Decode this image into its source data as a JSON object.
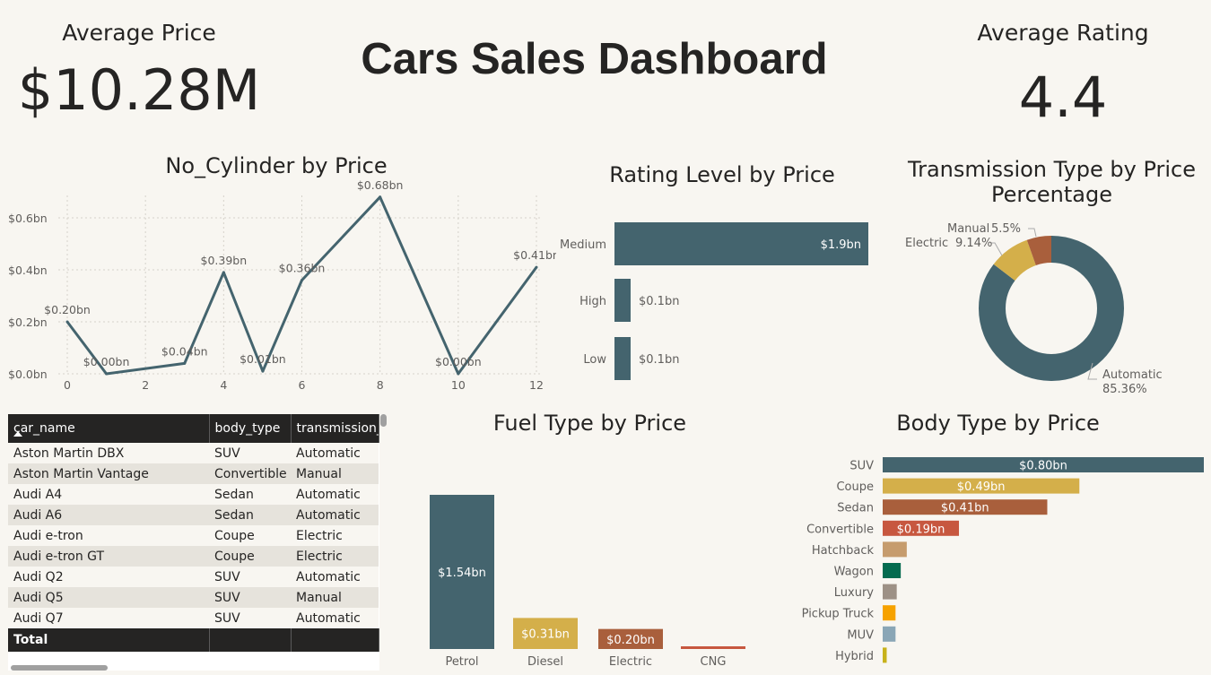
{
  "header": {
    "title": "Cars Sales Dashboard",
    "avg_price_label": "Average Price",
    "avg_price_value": "$10.28M",
    "avg_rating_label": "Average Rating",
    "avg_rating_value": "4.4"
  },
  "colors": {
    "teal": "#44646e",
    "gold": "#d4af4a",
    "rust": "#a95f3c",
    "red": "#c7573f",
    "tan": "#c69c6d",
    "green": "#046b4f",
    "taupe": "#9d9186",
    "orange": "#f6a200",
    "slate": "#8aa6b6",
    "olive": "#c8b21b"
  },
  "visuals": {
    "cylinder_title": "No_Cylinder by Price",
    "rating_title": "Rating Level by Price",
    "transmission_title_line1": "Transmission Type by Price",
    "transmission_title_line2": "Percentage",
    "fuel_title": "Fuel Type by Price",
    "body_title": "Body Type by Price"
  },
  "chart_data": [
    {
      "id": "cylinder",
      "type": "line",
      "title": "No_Cylinder by Price",
      "x": [
        0,
        1,
        3,
        4,
        5,
        6,
        8,
        10,
        12
      ],
      "values": [
        0.2,
        0.0,
        0.04,
        0.39,
        0.01,
        0.36,
        0.68,
        0.0,
        0.41
      ],
      "value_labels": [
        "$0.20bn",
        "$0.00bn",
        "$0.04bn",
        "$0.39bn",
        "$0.01bn",
        "$0.36bn",
        "$0.68bn",
        "$0.00bn",
        "$0.41bn"
      ],
      "xticks": [
        "0",
        "2",
        "4",
        "6",
        "8",
        "10",
        "12"
      ],
      "xlim": [
        0,
        12
      ],
      "yticks": [
        "$0.0bn",
        "$0.2bn",
        "$0.4bn",
        "$0.6bn"
      ],
      "ylim": [
        0,
        0.68
      ],
      "grid": true,
      "color": "#44646e"
    },
    {
      "id": "rating",
      "type": "bar",
      "orientation": "horizontal",
      "title": "Rating Level by Price",
      "categories": [
        "Medium",
        "High",
        "Low"
      ],
      "values": [
        1.9,
        0.1,
        0.1
      ],
      "value_labels": [
        "$1.9bn",
        "$0.1bn",
        "$0.1bn"
      ],
      "color": "#44646e"
    },
    {
      "id": "transmission",
      "type": "pie",
      "title": "Transmission Type by Price Percentage",
      "labels": [
        "Automatic",
        "Electric",
        "Manual"
      ],
      "values": [
        85.36,
        9.14,
        5.5
      ],
      "value_labels": [
        "85.36%",
        "9.14%",
        "5.5%"
      ],
      "colors": [
        "#44646e",
        "#d4af4a",
        "#a95f3c"
      ]
    },
    {
      "id": "fuel",
      "type": "bar",
      "title": "Fuel Type by Price",
      "categories": [
        "Petrol",
        "Diesel",
        "Electric",
        "CNG"
      ],
      "values": [
        1.54,
        0.31,
        0.2,
        0.02
      ],
      "value_labels": [
        "$1.54bn",
        "$0.31bn",
        "$0.20bn",
        ""
      ],
      "colors": [
        "#44646e",
        "#d4af4a",
        "#a95f3c",
        "#c7573f"
      ]
    },
    {
      "id": "body",
      "type": "bar",
      "orientation": "horizontal",
      "title": "Body Type by Price",
      "categories": [
        "SUV",
        "Coupe",
        "Sedan",
        "Convertible",
        "Hatchback",
        "Wagon",
        "Luxury",
        "Pickup Truck",
        "MUV",
        "Hybrid"
      ],
      "values": [
        0.8,
        0.49,
        0.41,
        0.19,
        0.06,
        0.045,
        0.035,
        0.032,
        0.032,
        0.01
      ],
      "value_labels": [
        "$0.80bn",
        "$0.49bn",
        "$0.41bn",
        "$0.19bn",
        "",
        "",
        "",
        "",
        "",
        ""
      ],
      "colors": [
        "#44646e",
        "#d4af4a",
        "#a95f3c",
        "#c7573f",
        "#c69c6d",
        "#046b4f",
        "#9d9186",
        "#f6a200",
        "#8aa6b6",
        "#c8b21b"
      ]
    }
  ],
  "table": {
    "columns": [
      "car_name",
      "body_type",
      "transmission_"
    ],
    "rows": [
      [
        "Aston Martin DBX",
        "SUV",
        "Automatic"
      ],
      [
        "Aston Martin Vantage",
        "Convertible",
        "Manual"
      ],
      [
        "Audi A4",
        "Sedan",
        "Automatic"
      ],
      [
        "Audi A6",
        "Sedan",
        "Automatic"
      ],
      [
        "Audi e-tron",
        "Coupe",
        "Electric"
      ],
      [
        "Audi e-tron GT",
        "Coupe",
        "Electric"
      ],
      [
        "Audi Q2",
        "SUV",
        "Automatic"
      ],
      [
        "Audi Q5",
        "SUV",
        "Manual"
      ],
      [
        "Audi Q7",
        "SUV",
        "Automatic"
      ]
    ],
    "total_label": "Total"
  }
}
